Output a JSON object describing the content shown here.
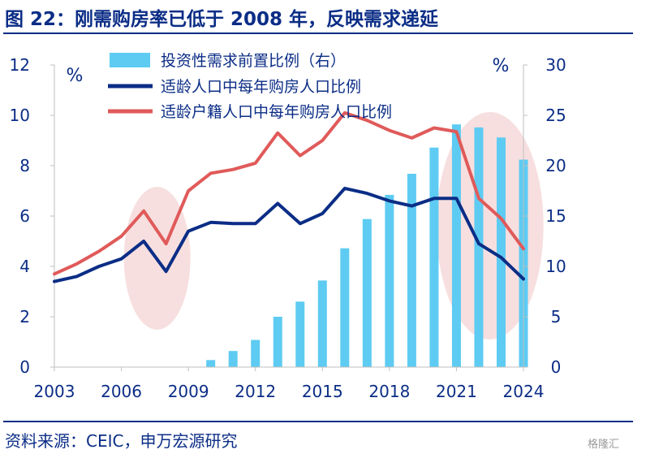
{
  "header": {
    "title": "图 22：刚需购房率已低于 2008 年，反映需求递延"
  },
  "footer": {
    "source": "资料来源：CEIC，申万宏源研究",
    "watermark": "格隆汇"
  },
  "colors": {
    "bar": "#5ecbf2",
    "line_dark": "#0b2d86",
    "line_red": "#e05a5a",
    "ellipse": "#f6d9d9",
    "axis_text": "#0b2d86"
  },
  "chart_data": {
    "type": "bar+line",
    "left_axis": {
      "unit": "%",
      "ticks": [
        "0",
        "2",
        "4",
        "6",
        "8",
        "10",
        "12"
      ],
      "ylim": [
        0,
        12
      ]
    },
    "right_axis": {
      "unit": "%",
      "ticks": [
        "0",
        "5",
        "10",
        "15",
        "20",
        "25",
        "30"
      ],
      "ylim": [
        0,
        30
      ]
    },
    "x_ticks": [
      "2003",
      "2006",
      "2009",
      "2012",
      "2015",
      "2018",
      "2021",
      "2024"
    ],
    "x_range": [
      2003,
      2024
    ],
    "legend": [
      {
        "label": "投资性需求前置比例（右）",
        "kind": "bar"
      },
      {
        "label": "适龄人口中每年购房人口比例",
        "kind": "line_dark"
      },
      {
        "label": "适龄户籍人口中每年购房人口比例",
        "kind": "line_red"
      }
    ],
    "series": [
      {
        "name": "投资性需求前置比例（右）",
        "type": "bar",
        "axis": "right",
        "x": [
          2010,
          2011,
          2012,
          2013,
          2014,
          2015,
          2016,
          2017,
          2018,
          2019,
          2020,
          2021,
          2022,
          2023,
          2024
        ],
        "values": [
          0.7,
          1.6,
          2.7,
          5.0,
          6.5,
          8.6,
          11.8,
          14.7,
          17.1,
          19.2,
          21.8,
          24.1,
          23.8,
          22.8,
          20.6
        ]
      },
      {
        "name": "适龄人口中每年购房人口比例",
        "type": "line",
        "axis": "left",
        "x": [
          2003,
          2004,
          2005,
          2006,
          2007,
          2008,
          2009,
          2010,
          2011,
          2012,
          2013,
          2014,
          2015,
          2016,
          2017,
          2018,
          2019,
          2020,
          2021,
          2022,
          2023,
          2024
        ],
        "values": [
          3.4,
          3.6,
          4.0,
          4.3,
          5.0,
          3.8,
          5.4,
          5.75,
          5.7,
          5.7,
          6.5,
          5.7,
          6.1,
          7.1,
          6.9,
          6.6,
          6.4,
          6.7,
          6.7,
          4.9,
          4.35,
          3.5
        ]
      },
      {
        "name": "适龄户籍人口中每年购房人口比例",
        "type": "line",
        "axis": "left",
        "x": [
          2003,
          2004,
          2005,
          2006,
          2007,
          2008,
          2009,
          2010,
          2011,
          2012,
          2013,
          2014,
          2015,
          2016,
          2017,
          2018,
          2019,
          2020,
          2021,
          2022,
          2023,
          2024
        ],
        "values": [
          3.7,
          4.1,
          4.6,
          5.2,
          6.2,
          4.9,
          7.0,
          7.7,
          7.85,
          8.1,
          9.3,
          8.4,
          9.0,
          10.1,
          9.8,
          9.4,
          9.1,
          9.5,
          9.35,
          6.7,
          5.9,
          4.7
        ]
      }
    ]
  }
}
